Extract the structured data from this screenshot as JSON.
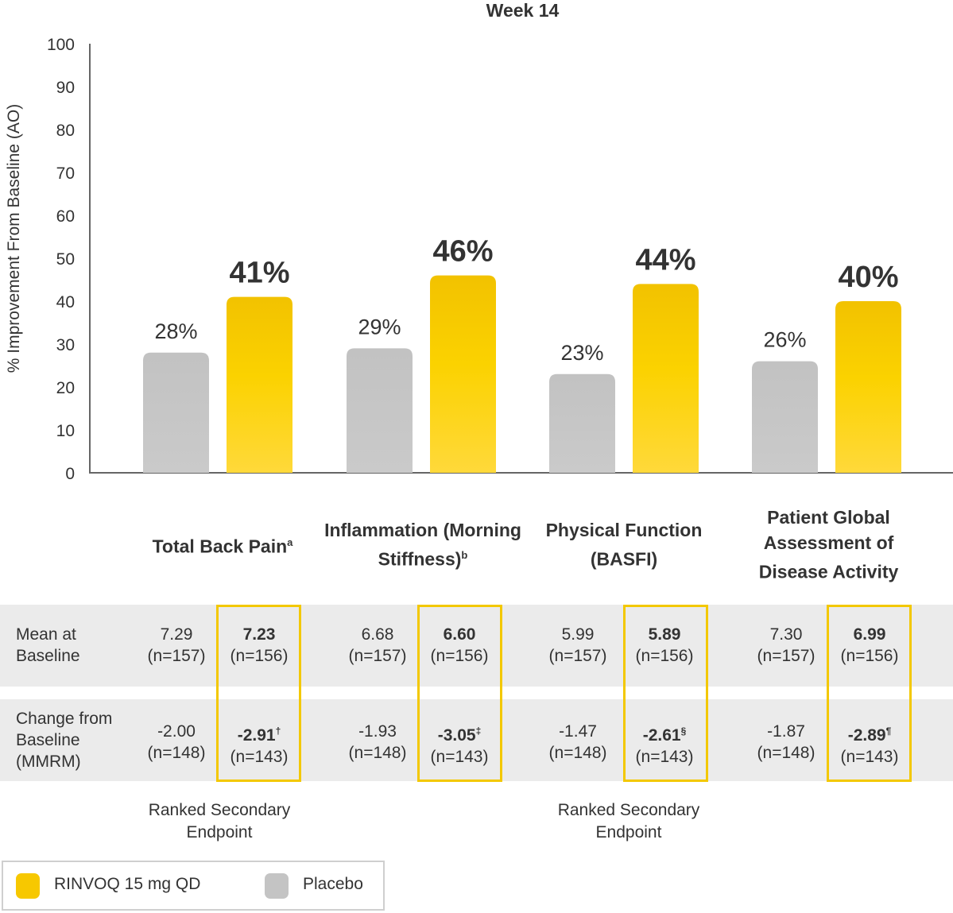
{
  "chart_data": {
    "type": "bar",
    "title": "Week 14",
    "ylabel": "% Improvement From Baseline (AO)",
    "ylim": [
      0,
      100
    ],
    "yticks": [
      0,
      10,
      20,
      30,
      40,
      50,
      60,
      70,
      80,
      90,
      100
    ],
    "categories": [
      {
        "main": "Total Back Pain",
        "sup": "a"
      },
      {
        "main": "Inflammation (Morning Stiffness)",
        "sup": "b"
      },
      {
        "main": "Physical Function (BASFI)",
        "sup": ""
      },
      {
        "main": "Patient Global Assessment of Disease Activity",
        "sup": ""
      }
    ],
    "series": [
      {
        "name": "Placebo",
        "color": "#c4c4c4",
        "values": [
          28,
          29,
          23,
          26
        ],
        "labels": [
          "28%",
          "29%",
          "23%",
          "26%"
        ]
      },
      {
        "name": "RINVOQ 15 mg QD",
        "color": "#f7c800",
        "values": [
          41,
          46,
          44,
          40
        ],
        "labels": [
          "41%",
          "46%",
          "44%",
          "40%"
        ]
      }
    ]
  },
  "table": {
    "rows": [
      {
        "label_lines": [
          "Mean at",
          "Baseline"
        ],
        "cells": [
          {
            "value": "7.29",
            "n": "(n=157)",
            "bold": false,
            "sup": ""
          },
          {
            "value": "7.23",
            "n": "(n=156)",
            "bold": true,
            "sup": ""
          },
          {
            "value": "6.68",
            "n": "(n=157)",
            "bold": false,
            "sup": ""
          },
          {
            "value": "6.60",
            "n": "(n=156)",
            "bold": true,
            "sup": ""
          },
          {
            "value": "5.99",
            "n": "(n=157)",
            "bold": false,
            "sup": ""
          },
          {
            "value": "5.89",
            "n": "(n=156)",
            "bold": true,
            "sup": ""
          },
          {
            "value": "7.30",
            "n": "(n=157)",
            "bold": false,
            "sup": ""
          },
          {
            "value": "6.99",
            "n": "(n=156)",
            "bold": true,
            "sup": ""
          }
        ]
      },
      {
        "label_lines": [
          "Change from",
          "Baseline",
          "(MMRM)"
        ],
        "cells": [
          {
            "value": "-2.00",
            "n": "(n=148)",
            "bold": false,
            "sup": ""
          },
          {
            "value": "-2.91",
            "n": "(n=143)",
            "bold": true,
            "sup": "†"
          },
          {
            "value": "-1.93",
            "n": "(n=148)",
            "bold": false,
            "sup": ""
          },
          {
            "value": "-3.05",
            "n": "(n=143)",
            "bold": true,
            "sup": "‡"
          },
          {
            "value": "-1.47",
            "n": "(n=148)",
            "bold": false,
            "sup": ""
          },
          {
            "value": "-2.61",
            "n": "(n=143)",
            "bold": true,
            "sup": "§"
          },
          {
            "value": "-1.87",
            "n": "(n=148)",
            "bold": false,
            "sup": ""
          },
          {
            "value": "-2.89",
            "n": "(n=143)",
            "bold": true,
            "sup": "¶"
          }
        ]
      }
    ]
  },
  "ranked_endpoint_label": "Ranked Secondary Endpoint",
  "legend": {
    "items": [
      {
        "label": "RINVOQ 15 mg QD",
        "color": "#f7c800"
      },
      {
        "label": "Placebo",
        "color": "#c4c4c4"
      }
    ]
  }
}
